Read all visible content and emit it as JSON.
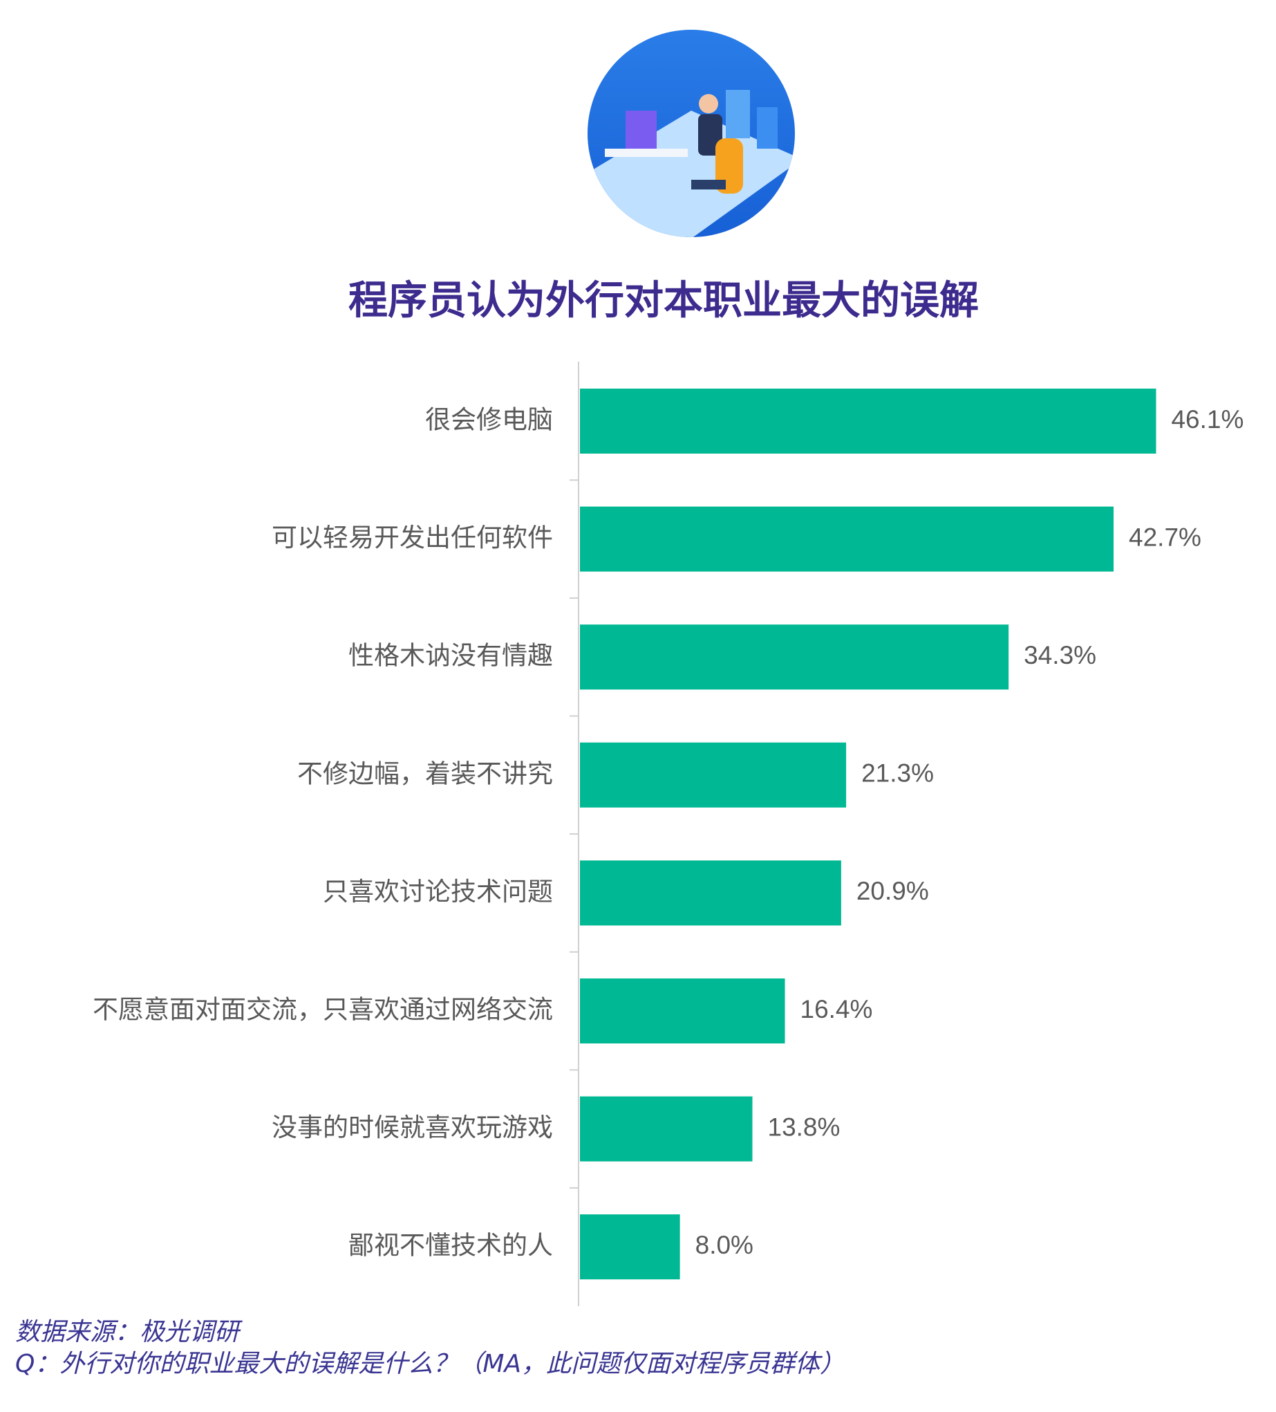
{
  "chart_data": {
    "type": "barh",
    "title": "程序员认为外行对本职业最大的误解",
    "categories": [
      "很会修电脑",
      "可以轻易开发出任何软件",
      "性格木讷没有情趣",
      "不修边幅，着装不讲究",
      "只喜欢讨论技术问题",
      "不愿意面对面交流，只喜欢通过网络交流",
      "没事的时候就喜欢玩游戏",
      "鄙视不懂技术的人"
    ],
    "values": [
      46.1,
      42.7,
      34.3,
      21.3,
      20.9,
      16.4,
      13.8,
      8.0
    ],
    "value_labels": [
      "46.1%",
      "42.7%",
      "34.3%",
      "21.3%",
      "20.9%",
      "16.4%",
      "13.8%",
      "8.0%"
    ],
    "color": "#00b893",
    "xlim": [
      0,
      50
    ],
    "source": "数据来源：极光调研",
    "note": "Q：外行对你的职业最大的误解是什么？（MA，此问题仅面对程序员群体）"
  }
}
